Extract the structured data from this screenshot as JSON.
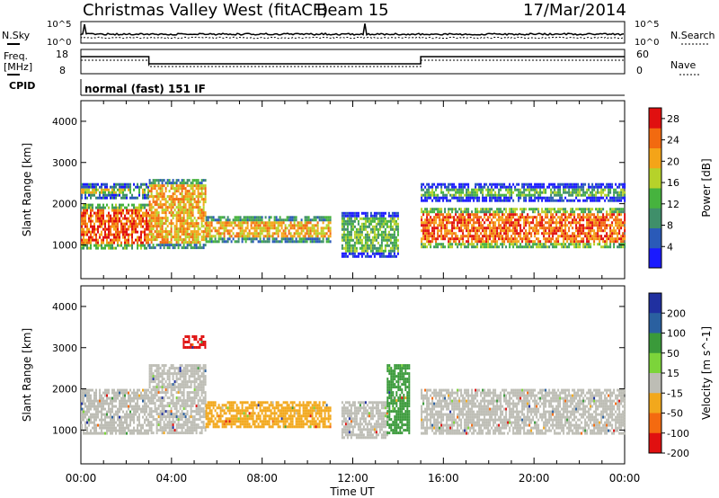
{
  "header": {
    "station": "Christmas Valley West (fitACF)",
    "beam": "Beam 15",
    "date": "17/Mar/2014"
  },
  "strips": {
    "nsky_label": "N.Sky",
    "nsky_ticks": [
      "10^5",
      "10^0"
    ],
    "nsearch_label": "N.Search",
    "nsearch_ticks": [
      "10^5",
      "10^0"
    ],
    "freq_label_1": "Freq.",
    "freq_label_2": "[MHz]",
    "freq_ticks": [
      "18",
      "8"
    ],
    "nave_label": "Nave",
    "nave_ticks": [
      "60",
      "0"
    ],
    "cpid_label": "CPID",
    "cpid_value": "normal (fast) 151 IF"
  },
  "chart_data": [
    {
      "type": "heatmap",
      "panel": "power",
      "xlabel": "Time UT",
      "ylabel": "Slant Range [km]",
      "x_ticks": [
        "00:00",
        "04:00",
        "08:00",
        "12:00",
        "16:00",
        "20:00",
        "00:00"
      ],
      "xlim_hours": [
        0,
        24
      ],
      "y_ticks": [
        1000,
        2000,
        3000,
        4000
      ],
      "ylim": [
        180,
        4500
      ],
      "colorbar": {
        "label": "Power [dB]",
        "ticks": [
          4,
          8,
          12,
          16,
          20,
          24,
          28
        ],
        "range": [
          0,
          30
        ],
        "colors": [
          "#1a1aff",
          "#2a5ab8",
          "#3f8f6a",
          "#46b33e",
          "#b6d22a",
          "#f4a418",
          "#f26a10",
          "#e01010"
        ]
      },
      "bands_hours_km": [
        {
          "start_h": 0.0,
          "end_h": 3.0,
          "range_km": [
            950,
            2000
          ],
          "level_db": 25
        },
        {
          "start_h": 0.0,
          "end_h": 3.0,
          "range_km": [
            2150,
            2500
          ],
          "level_db": 16
        },
        {
          "start_h": 3.0,
          "end_h": 5.5,
          "range_km": [
            900,
            2600
          ],
          "level_db": 22
        },
        {
          "start_h": 5.5,
          "end_h": 11.0,
          "range_km": [
            1050,
            1700
          ],
          "level_db": 20
        },
        {
          "start_h": 11.5,
          "end_h": 14.0,
          "range_km": [
            700,
            1800
          ],
          "level_db": 14
        },
        {
          "start_h": 15.0,
          "end_h": 24.0,
          "range_km": [
            950,
            1900
          ],
          "level_db": 25
        },
        {
          "start_h": 15.0,
          "end_h": 24.0,
          "range_km": [
            2050,
            2500
          ],
          "level_db": 14
        }
      ]
    },
    {
      "type": "heatmap",
      "panel": "velocity",
      "xlabel": "Time UT",
      "ylabel": "Slant Range [km]",
      "x_ticks": [
        "00:00",
        "04:00",
        "08:00",
        "12:00",
        "16:00",
        "20:00",
        "00:00"
      ],
      "xlim_hours": [
        0,
        24
      ],
      "y_ticks": [
        1000,
        2000,
        3000,
        4000
      ],
      "ylim": [
        180,
        4500
      ],
      "colorbar": {
        "label": "Velocity [m s^-1]",
        "ticks": [
          200,
          100,
          50,
          15,
          -15,
          -50,
          -100,
          -200
        ],
        "colors": [
          "#2030a0",
          "#2a60a0",
          "#3a9a3a",
          "#7cd43a",
          "#bdbdb5",
          "#f2a81c",
          "#f46a10",
          "#e01010"
        ]
      },
      "bands_hours_km": [
        {
          "start_h": 0.0,
          "end_h": 3.0,
          "range_km": [
            950,
            2000
          ],
          "velocity": 0
        },
        {
          "start_h": 3.0,
          "end_h": 5.5,
          "range_km": [
            900,
            2600
          ],
          "velocity": 0
        },
        {
          "start_h": 5.5,
          "end_h": 11.0,
          "range_km": [
            1050,
            1700
          ],
          "velocity": -40
        },
        {
          "start_h": 11.5,
          "end_h": 13.5,
          "range_km": [
            800,
            1700
          ],
          "velocity": 0
        },
        {
          "start_h": 13.5,
          "end_h": 14.5,
          "range_km": [
            900,
            2600
          ],
          "velocity": 60
        },
        {
          "start_h": 15.0,
          "end_h": 24.0,
          "range_km": [
            950,
            2000
          ],
          "velocity": 0
        },
        {
          "start_h": 4.5,
          "end_h": 5.5,
          "range_km": [
            3000,
            3300
          ],
          "velocity": -200
        }
      ]
    }
  ]
}
